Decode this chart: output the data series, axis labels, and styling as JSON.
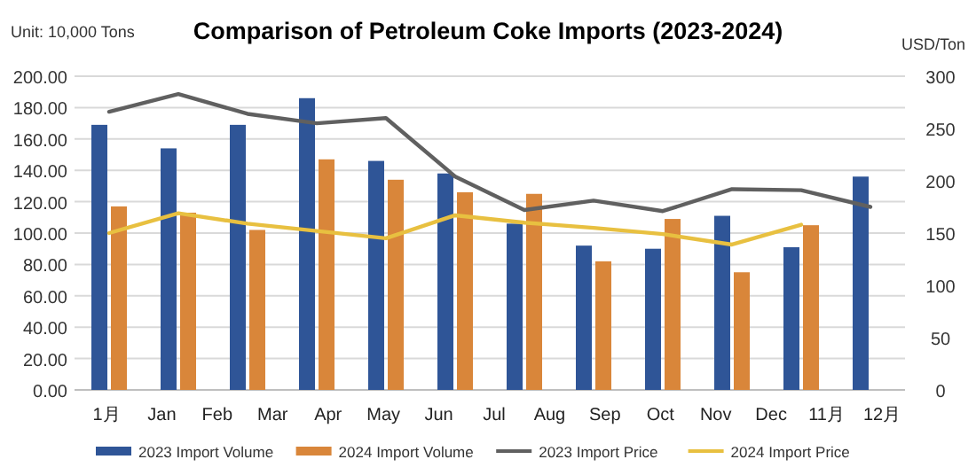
{
  "chart_data": {
    "type": "bar",
    "title": "Comparison of Petroleum Coke Imports (2023-2024)",
    "ylabel": "Unit: 10,000 Tons",
    "y2label": "USD/Ton",
    "categories": [
      null,
      null,
      null,
      null,
      null,
      null,
      null,
      null,
      null,
      null,
      null,
      null
    ],
    "series": [
      {
        "name": "2023 Import Volume",
        "color": "#2f5597",
        "values": [
          169,
          154,
          169,
          186,
          146,
          138,
          106,
          92,
          90,
          111,
          91,
          136
        ]
      },
      {
        "name": "2024 Import Volume",
        "color": "#d9863a",
        "values": [
          117,
          113,
          102,
          147,
          134,
          126,
          125,
          82,
          109,
          75,
          105,
          null
        ]
      },
      {
        "name": "2023 Import Price",
        "type": "line",
        "axis": "y2",
        "color": "#606060",
        "values": [
          266,
          283,
          264,
          255,
          260,
          204,
          172,
          181,
          171,
          192,
          191,
          175
        ]
      },
      {
        "name": "2024 Import Price",
        "type": "line",
        "axis": "y2",
        "color": "#e8c040",
        "values": [
          150,
          169,
          159,
          152,
          145,
          167,
          160,
          155,
          149,
          139,
          158,
          null
        ]
      }
    ],
    "ylim": [
      0,
      200
    ],
    "yticks": [
      {
        "value": 0,
        "label": "0.00"
      },
      {
        "value": 20,
        "label": "20.00"
      },
      {
        "value": 40,
        "label": "40.00"
      },
      {
        "value": 60,
        "label": "60.00"
      },
      {
        "value": 80,
        "label": "80.00"
      },
      {
        "value": 100,
        "label": "100.00"
      },
      {
        "value": 120,
        "label": "120.00"
      },
      {
        "value": 140,
        "label": "140.00"
      },
      {
        "value": 160,
        "label": "160.00"
      },
      {
        "value": 180,
        "label": "180.00"
      },
      {
        "value": 200,
        "label": "200.00"
      }
    ],
    "y2lim": [
      0,
      300
    ],
    "y2ticks": [
      0,
      50,
      100,
      150,
      200,
      250,
      300
    ],
    "grid": "y",
    "legend": "bottom",
    "annotations": [
      "1月",
      "Jan",
      "Feb",
      "Mar",
      "Apr",
      "May",
      "Jun",
      "Jul",
      "Aug",
      "Sep",
      "Oct",
      "Nov",
      "Dec",
      "11月",
      "12月"
    ]
  }
}
